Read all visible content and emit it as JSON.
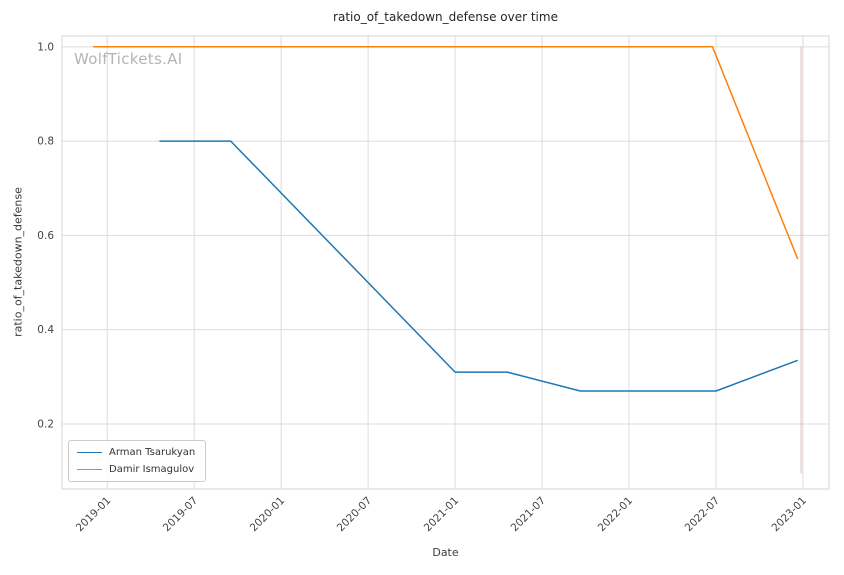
{
  "watermark": {
    "text": "WolfTickets.AI",
    "color": "#b4b4b4"
  },
  "style": {
    "grid_color": "#dcdcdc",
    "spine_color": "#d4d4d4",
    "tick_color": "#444444",
    "title_color": "#262626",
    "series_blue": "#1f77b4",
    "series_orange": "#ff7f0e"
  },
  "chart_data": {
    "type": "line",
    "title": "ratio_of_takedown_defense over time",
    "xlabel": "Date",
    "ylabel": "ratio_of_takedown_defense",
    "grid": true,
    "legend_position": "lower-left",
    "x_unit": "decimal_year",
    "xlim": [
      2018.74,
      2023.15
    ],
    "ylim": [
      0.062,
      1.023
    ],
    "x_ticks": [
      {
        "value": 2019.0,
        "label": "2019-01"
      },
      {
        "value": 2019.5,
        "label": "2019-07"
      },
      {
        "value": 2020.0,
        "label": "2020-01"
      },
      {
        "value": 2020.5,
        "label": "2020-07"
      },
      {
        "value": 2021.0,
        "label": "2021-01"
      },
      {
        "value": 2021.5,
        "label": "2021-07"
      },
      {
        "value": 2022.0,
        "label": "2022-01"
      },
      {
        "value": 2022.5,
        "label": "2022-07"
      },
      {
        "value": 2023.0,
        "label": "2023-01"
      }
    ],
    "y_ticks": [
      {
        "value": 0.2,
        "label": "0.2"
      },
      {
        "value": 0.4,
        "label": "0.4"
      },
      {
        "value": 0.6,
        "label": "0.6"
      },
      {
        "value": 0.8,
        "label": "0.8"
      },
      {
        "value": 1.0,
        "label": "1.0"
      }
    ],
    "series": [
      {
        "name": "Arman Tsarukyan",
        "color": "#1f77b4",
        "points": [
          {
            "date": "2019-04",
            "x": 2019.3,
            "y": 0.8
          },
          {
            "date": "2019-09",
            "x": 2019.71,
            "y": 0.8
          },
          {
            "date": "2021-01",
            "x": 2021.0,
            "y": 0.31
          },
          {
            "date": "2021-04",
            "x": 2021.3,
            "y": 0.31
          },
          {
            "date": "2021-09",
            "x": 2021.72,
            "y": 0.27
          },
          {
            "date": "2022-06",
            "x": 2022.5,
            "y": 0.27
          },
          {
            "date": "2022-12",
            "x": 2022.97,
            "y": 0.335
          }
        ]
      },
      {
        "name": "Damir Ismagulov",
        "color": "#ff7f0e",
        "points": [
          {
            "date": "2018-12",
            "x": 2018.92,
            "y": 1.0
          },
          {
            "date": "2022-06",
            "x": 2022.48,
            "y": 1.0
          },
          {
            "date": "2022-12",
            "x": 2022.97,
            "y": 0.55
          }
        ]
      }
    ],
    "annotations": [
      {
        "type": "vline",
        "x": 2022.99,
        "y_from": 0.095,
        "y_to": 1.0,
        "color": "#dd7766",
        "opacity": 0.45
      }
    ]
  }
}
